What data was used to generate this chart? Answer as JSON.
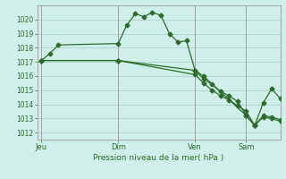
{
  "background_color": "#cff0ea",
  "grid_color": "#aad4cc",
  "line_color": "#2d6b2d",
  "title": "Pression niveau de la mer( hPa )",
  "ylim": [
    1011.5,
    1021.0
  ],
  "yticks": [
    1012,
    1013,
    1014,
    1015,
    1016,
    1017,
    1018,
    1019,
    1020
  ],
  "day_labels": [
    "Jeu",
    "Dim",
    "Ven",
    "Sam"
  ],
  "day_positions": [
    0,
    9,
    18,
    24
  ],
  "xlim": [
    -0.5,
    28
  ],
  "line1_x": [
    0,
    1,
    2,
    9,
    10,
    11,
    12,
    13,
    14,
    15,
    16,
    17,
    18,
    19,
    24,
    25,
    26,
    27,
    28
  ],
  "line1_y": [
    1017.1,
    1017.6,
    1018.2,
    1018.3,
    1019.6,
    1020.4,
    1020.2,
    1020.5,
    1020.3,
    1019.0,
    1018.4,
    1018.5,
    1016.4,
    1016.0,
    1013.2,
    1012.5,
    1014.1,
    1015.1,
    1014.4
  ],
  "line2_x": [
    0,
    9,
    18,
    19,
    20,
    21,
    22,
    23,
    24,
    25,
    26,
    27,
    28
  ],
  "line2_y": [
    1017.1,
    1017.1,
    1016.4,
    1015.8,
    1015.4,
    1014.9,
    1014.6,
    1014.2,
    1013.2,
    1012.5,
    1013.1,
    1013.0,
    1012.8
  ],
  "line3_x": [
    0,
    9,
    18,
    19,
    20,
    21,
    22,
    23,
    24,
    25,
    26,
    27,
    28
  ],
  "line3_y": [
    1017.1,
    1017.1,
    1016.1,
    1015.5,
    1015.0,
    1014.6,
    1014.3,
    1013.9,
    1013.5,
    1012.5,
    1013.2,
    1013.1,
    1012.9
  ]
}
